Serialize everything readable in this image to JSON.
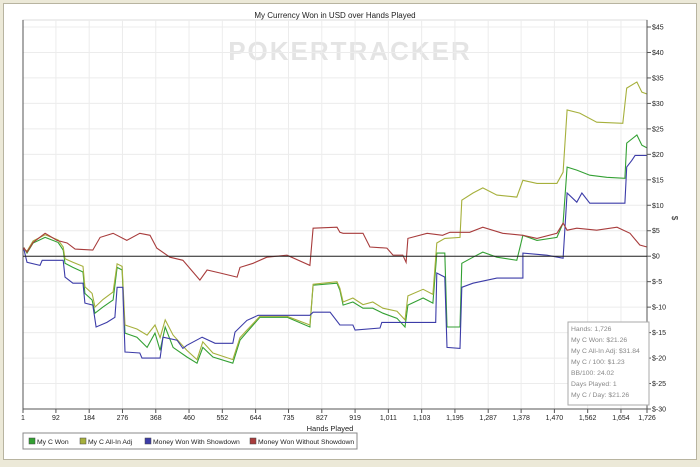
{
  "chart_data": {
    "type": "line",
    "title": "My Currency Won in USD over Hands Played",
    "watermark": "POKERTRACKER",
    "xlabel": "Hands Played",
    "ylabel": "$",
    "xlim": [
      1,
      1726
    ],
    "ylim": [
      -30,
      45
    ],
    "x_ticks": [
      "1",
      "92",
      "184",
      "276",
      "368",
      "460",
      "552",
      "644",
      "735",
      "827",
      "919",
      "1,011",
      "1,103",
      "1,195",
      "1,287",
      "1,378",
      "1,470",
      "1,562",
      "1,654",
      "1,726"
    ],
    "x_tick_values": [
      1,
      92,
      184,
      276,
      368,
      460,
      552,
      644,
      735,
      827,
      919,
      1011,
      1103,
      1195,
      1287,
      1378,
      1470,
      1562,
      1654,
      1726
    ],
    "y_ticks": [
      "$45",
      "$40",
      "$35",
      "$30",
      "$25",
      "$20",
      "$15",
      "$10",
      "$5",
      "$0",
      "$-5",
      "$-10",
      "$-15",
      "$-20",
      "$-25",
      "$-30"
    ],
    "y_tick_values": [
      45,
      40,
      35,
      30,
      25,
      20,
      15,
      10,
      5,
      0,
      -5,
      -10,
      -15,
      -20,
      -25,
      -30
    ],
    "grid": true,
    "legend_position": "bottom-left",
    "series": [
      {
        "name": "My C Won",
        "color": "#33a033",
        "points": [
          [
            1,
            1.2
          ],
          [
            4,
            1.6
          ],
          [
            12,
            0.6
          ],
          [
            29,
            2.6
          ],
          [
            62,
            3.7
          ],
          [
            98,
            2.7
          ],
          [
            112,
            1.2
          ],
          [
            117,
            -1.4
          ],
          [
            139,
            -2.2
          ],
          [
            167,
            -3.1
          ],
          [
            172,
            -7.3
          ],
          [
            192,
            -8.6
          ],
          [
            200,
            -11.2
          ],
          [
            222,
            -10
          ],
          [
            250,
            -8.6
          ],
          [
            261,
            -2.2
          ],
          [
            275,
            -2.7
          ],
          [
            283,
            -15.1
          ],
          [
            316,
            -15.9
          ],
          [
            344,
            -17.9
          ],
          [
            366,
            -15.1
          ],
          [
            380,
            -18.5
          ],
          [
            394,
            -13.9
          ],
          [
            416,
            -17.9
          ],
          [
            454,
            -19.8
          ],
          [
            482,
            -21
          ],
          [
            498,
            -17.9
          ],
          [
            526,
            -19.8
          ],
          [
            581,
            -21
          ],
          [
            601,
            -16.5
          ],
          [
            620,
            -14.9
          ],
          [
            656,
            -12
          ],
          [
            731,
            -12
          ],
          [
            794,
            -13.9
          ],
          [
            803,
            -5.7
          ],
          [
            869,
            -5.3
          ],
          [
            877,
            -6.7
          ],
          [
            886,
            -9.6
          ],
          [
            913,
            -9
          ],
          [
            941,
            -10.2
          ],
          [
            968,
            -10.2
          ],
          [
            996,
            -11.2
          ],
          [
            1035,
            -12.2
          ],
          [
            1057,
            -13.9
          ],
          [
            1065,
            -9.6
          ],
          [
            1107,
            -8.2
          ],
          [
            1134,
            -9.2
          ],
          [
            1145,
            0.6
          ],
          [
            1167,
            0.6
          ],
          [
            1173,
            -13.9
          ],
          [
            1209,
            -13.9
          ],
          [
            1214,
            -1.4
          ],
          [
            1245,
            -0.2
          ],
          [
            1272,
            0.8
          ],
          [
            1311,
            -0.2
          ],
          [
            1366,
            -0.8
          ],
          [
            1383,
            4.1
          ],
          [
            1422,
            3.1
          ],
          [
            1477,
            3.7
          ],
          [
            1494,
            6.5
          ],
          [
            1505,
            17.5
          ],
          [
            1532,
            16.9
          ],
          [
            1568,
            15.9
          ],
          [
            1615,
            15.5
          ],
          [
            1665,
            15.3
          ],
          [
            1670,
            22.2
          ],
          [
            1698,
            23.8
          ],
          [
            1712,
            21.8
          ],
          [
            1726,
            21.26
          ]
        ]
      },
      {
        "name": "My C All-In Adj",
        "color": "#a6b03c",
        "points": [
          [
            1,
            1.5
          ],
          [
            12,
            1
          ],
          [
            29,
            3
          ],
          [
            62,
            4.2
          ],
          [
            98,
            3.2
          ],
          [
            112,
            1.8
          ],
          [
            117,
            -0.5
          ],
          [
            139,
            -1.2
          ],
          [
            167,
            -2
          ],
          [
            172,
            -6
          ],
          [
            192,
            -7.3
          ],
          [
            200,
            -10
          ],
          [
            222,
            -8.5
          ],
          [
            250,
            -7
          ],
          [
            261,
            -1.5
          ],
          [
            275,
            -2
          ],
          [
            283,
            -13.5
          ],
          [
            316,
            -14.3
          ],
          [
            344,
            -15.5
          ],
          [
            366,
            -13.5
          ],
          [
            380,
            -16
          ],
          [
            394,
            -12.5
          ],
          [
            416,
            -15.5
          ],
          [
            454,
            -18.5
          ],
          [
            482,
            -20.3
          ],
          [
            498,
            -16.8
          ],
          [
            526,
            -19
          ],
          [
            581,
            -20.3
          ],
          [
            601,
            -16
          ],
          [
            620,
            -14.5
          ],
          [
            656,
            -11.8
          ],
          [
            731,
            -11.8
          ],
          [
            794,
            -13.5
          ],
          [
            803,
            -5.5
          ],
          [
            869,
            -5
          ],
          [
            877,
            -6.3
          ],
          [
            886,
            -9
          ],
          [
            913,
            -8.2
          ],
          [
            941,
            -9.5
          ],
          [
            968,
            -9
          ],
          [
            996,
            -10.2
          ],
          [
            1035,
            -10.8
          ],
          [
            1057,
            -12.5
          ],
          [
            1065,
            -7.8
          ],
          [
            1107,
            -6.5
          ],
          [
            1134,
            -7.5
          ],
          [
            1145,
            2.6
          ],
          [
            1167,
            3.5
          ],
          [
            1209,
            3.7
          ],
          [
            1214,
            11
          ],
          [
            1245,
            12.4
          ],
          [
            1272,
            13.4
          ],
          [
            1311,
            12
          ],
          [
            1366,
            11.6
          ],
          [
            1383,
            14.9
          ],
          [
            1422,
            14.3
          ],
          [
            1477,
            14.3
          ],
          [
            1494,
            16.5
          ],
          [
            1505,
            28.7
          ],
          [
            1540,
            28.1
          ],
          [
            1587,
            26.3
          ],
          [
            1659,
            26.1
          ],
          [
            1670,
            33
          ],
          [
            1698,
            34.2
          ],
          [
            1712,
            32.2
          ],
          [
            1726,
            31.84
          ]
        ]
      },
      {
        "name": "Money Won With Showdown",
        "color": "#3c3ca8",
        "points": [
          [
            1,
            1.2
          ],
          [
            4,
            1.2
          ],
          [
            12,
            -1.2
          ],
          [
            48,
            -1.8
          ],
          [
            54,
            -0.8
          ],
          [
            112,
            -0.8
          ],
          [
            117,
            -4.1
          ],
          [
            139,
            -5.3
          ],
          [
            167,
            -5.3
          ],
          [
            172,
            -9.2
          ],
          [
            194,
            -9.6
          ],
          [
            203,
            -13.9
          ],
          [
            233,
            -13
          ],
          [
            255,
            -12
          ],
          [
            261,
            -6.1
          ],
          [
            277,
            -6.1
          ],
          [
            283,
            -18.8
          ],
          [
            324,
            -19
          ],
          [
            330,
            -20
          ],
          [
            380,
            -20
          ],
          [
            388,
            -15.9
          ],
          [
            427,
            -16.5
          ],
          [
            443,
            -18.1
          ],
          [
            454,
            -17.5
          ],
          [
            496,
            -15.9
          ],
          [
            532,
            -17.1
          ],
          [
            581,
            -17.1
          ],
          [
            587,
            -14.9
          ],
          [
            620,
            -12.6
          ],
          [
            651,
            -11.6
          ],
          [
            794,
            -11.6
          ],
          [
            803,
            -11
          ],
          [
            850,
            -11
          ],
          [
            877,
            -13.5
          ],
          [
            913,
            -13.5
          ],
          [
            919,
            -14.5
          ],
          [
            988,
            -14.1
          ],
          [
            993,
            -13
          ],
          [
            1142,
            -13
          ],
          [
            1145,
            -3.3
          ],
          [
            1167,
            -4.1
          ],
          [
            1173,
            -17.9
          ],
          [
            1209,
            -18.1
          ],
          [
            1214,
            -6.1
          ],
          [
            1245,
            -5.3
          ],
          [
            1311,
            -4.3
          ],
          [
            1383,
            -4.3
          ],
          [
            1383,
            0.6
          ],
          [
            1449,
            0.2
          ],
          [
            1494,
            -0.4
          ],
          [
            1505,
            12.4
          ],
          [
            1532,
            10.6
          ],
          [
            1546,
            12.4
          ],
          [
            1568,
            10.4
          ],
          [
            1665,
            10.4
          ],
          [
            1670,
            17.5
          ],
          [
            1684,
            18.8
          ],
          [
            1693,
            19.8
          ],
          [
            1726,
            19.8
          ]
        ]
      },
      {
        "name": "Money Won Without Showdown",
        "color": "#a83c3c",
        "points": [
          [
            1,
            1.2
          ],
          [
            4,
            1.6
          ],
          [
            12,
            0.8
          ],
          [
            29,
            2.7
          ],
          [
            62,
            4.5
          ],
          [
            95,
            3.1
          ],
          [
            123,
            2.6
          ],
          [
            145,
            1.4
          ],
          [
            194,
            1.2
          ],
          [
            214,
            3.7
          ],
          [
            250,
            4.5
          ],
          [
            288,
            3.1
          ],
          [
            324,
            4.5
          ],
          [
            352,
            4.1
          ],
          [
            371,
            1.6
          ],
          [
            407,
            -0.2
          ],
          [
            443,
            -0.8
          ],
          [
            490,
            -4.7
          ],
          [
            510,
            -2.7
          ],
          [
            546,
            -3.3
          ],
          [
            593,
            -4.1
          ],
          [
            601,
            -2.2
          ],
          [
            637,
            -1.4
          ],
          [
            675,
            -0.2
          ],
          [
            731,
            0.2
          ],
          [
            794,
            -1.8
          ],
          [
            803,
            5.5
          ],
          [
            869,
            5.7
          ],
          [
            877,
            4.7
          ],
          [
            886,
            4.5
          ],
          [
            941,
            4.5
          ],
          [
            960,
            1.8
          ],
          [
            1007,
            1.6
          ],
          [
            1024,
            0.2
          ],
          [
            1051,
            0.2
          ],
          [
            1060,
            -1.2
          ],
          [
            1065,
            3.5
          ],
          [
            1118,
            4.5
          ],
          [
            1161,
            4.1
          ],
          [
            1181,
            4.7
          ],
          [
            1236,
            4.7
          ],
          [
            1272,
            5.7
          ],
          [
            1327,
            4.5
          ],
          [
            1383,
            4.1
          ],
          [
            1422,
            3.5
          ],
          [
            1477,
            4.5
          ],
          [
            1494,
            6.5
          ],
          [
            1505,
            5.1
          ],
          [
            1532,
            5.5
          ],
          [
            1587,
            5.1
          ],
          [
            1643,
            5.7
          ],
          [
            1679,
            4.5
          ],
          [
            1706,
            2.2
          ],
          [
            1726,
            1.8
          ]
        ]
      }
    ],
    "stats_box": [
      "Hands: 1,726",
      "My C Won: $21.26",
      "My C All-In Adj: $31.84",
      "My C / 100: $1.23",
      "BB/100: 24.02",
      "Days Played: 1",
      "My C / Day: $21.26"
    ]
  }
}
